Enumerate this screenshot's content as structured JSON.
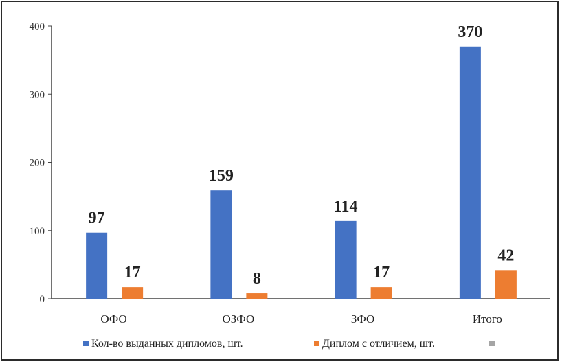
{
  "chart_data": {
    "type": "bar",
    "categories": [
      "ОФО",
      "ОЗФО",
      "ЗФО",
      "Итого"
    ],
    "series": [
      {
        "name": "Кол-во выданных дипломов, шт.",
        "values": [
          97,
          159,
          114,
          370
        ],
        "color": "#4472C4"
      },
      {
        "name": "Диплом с отличием, шт.",
        "values": [
          17,
          8,
          17,
          42
        ],
        "color": "#ED7D31"
      }
    ],
    "legend_extra_color": "#A5A5A5",
    "y_ticks": [
      0,
      100,
      200,
      300,
      400
    ],
    "ylim": [
      0,
      400
    ],
    "grid": false,
    "legend_position": "bottom"
  }
}
